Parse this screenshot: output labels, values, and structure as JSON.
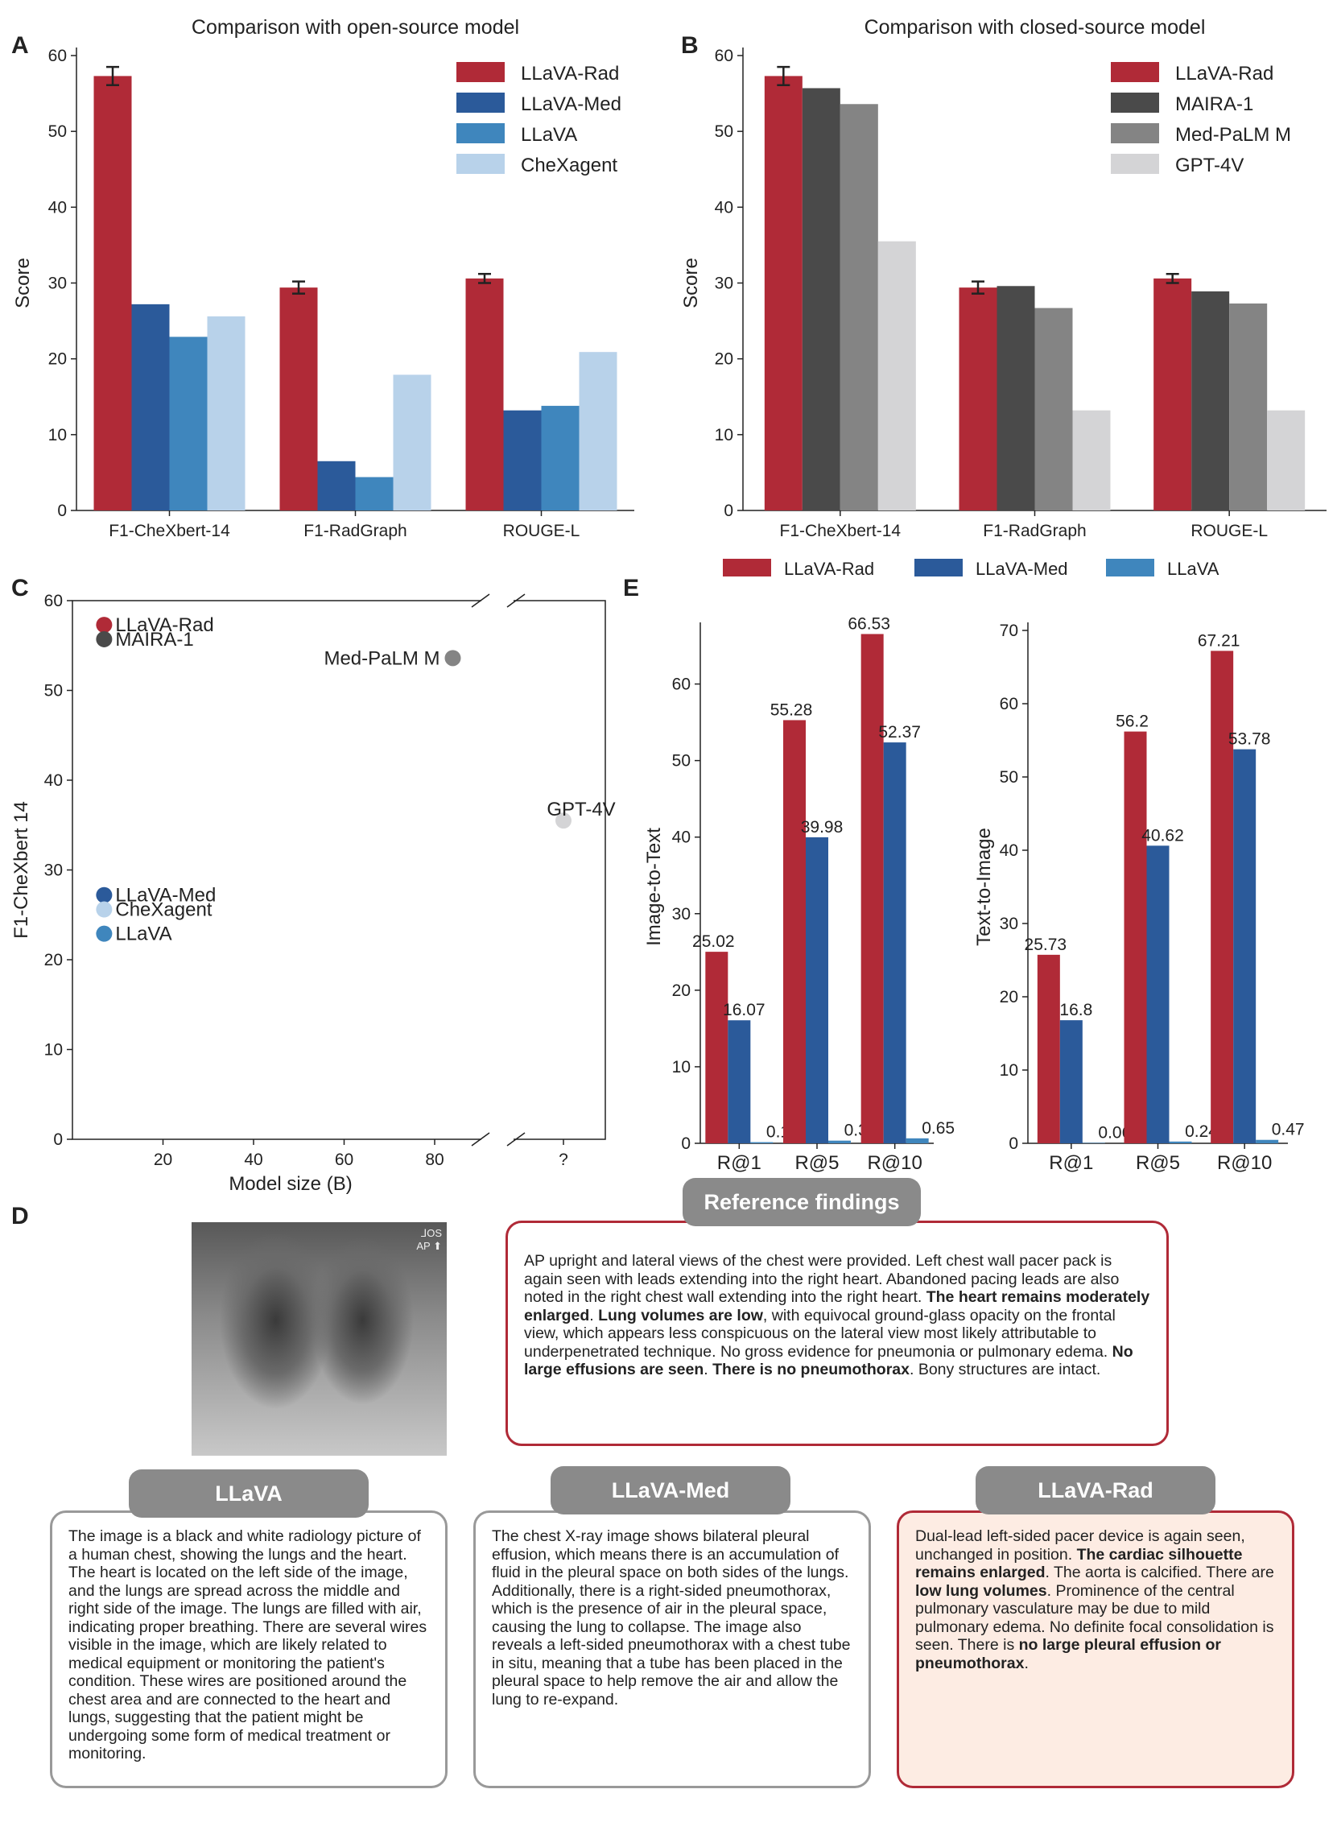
{
  "panels": {
    "A": "A",
    "B": "B",
    "C": "C",
    "D": "D",
    "E": "E"
  },
  "colors": {
    "llava_rad": "#b02a37",
    "llava_med": "#2b5a9a",
    "llava": "#3f86bd",
    "chexagent": "#b8d2ea",
    "maira": "#4a4a4a",
    "medpalm": "#848484",
    "gpt4v": "#d4d4d6"
  },
  "chart_data": [
    {
      "id": "A",
      "type": "bar",
      "title": "Comparison with open-source model",
      "ylabel": "Score",
      "ylim": [
        0,
        60
      ],
      "yticks": [
        "0",
        "10",
        "20",
        "30",
        "40",
        "50",
        "60"
      ],
      "categories": [
        "F1-CheXbert-14",
        "F1-RadGraph",
        "ROUGE-L"
      ],
      "series": [
        {
          "name": "LLaVA-Rad",
          "values": [
            57.3,
            29.4,
            30.6
          ],
          "errors": [
            1.2,
            0.8,
            0.6
          ]
        },
        {
          "name": "LLaVA-Med",
          "values": [
            27.2,
            6.5,
            13.2
          ]
        },
        {
          "name": "LLaVA",
          "values": [
            22.9,
            4.4,
            13.8
          ]
        },
        {
          "name": "CheXagent",
          "values": [
            25.6,
            17.9,
            20.9
          ]
        }
      ],
      "legend": "top-right"
    },
    {
      "id": "B",
      "type": "bar",
      "title": "Comparison with closed-source model",
      "ylabel": "Score",
      "ylim": [
        0,
        60
      ],
      "yticks": [
        "0",
        "10",
        "20",
        "30",
        "40",
        "50",
        "60"
      ],
      "categories": [
        "F1-CheXbert-14",
        "F1-RadGraph",
        "ROUGE-L"
      ],
      "series": [
        {
          "name": "LLaVA-Rad",
          "values": [
            57.3,
            29.4,
            30.6
          ],
          "errors": [
            1.2,
            0.8,
            0.6
          ]
        },
        {
          "name": "MAIRA-1",
          "values": [
            55.7,
            29.6,
            28.9
          ]
        },
        {
          "name": "Med-PaLM M",
          "values": [
            53.6,
            26.7,
            27.3
          ]
        },
        {
          "name": "GPT-4V",
          "values": [
            35.5,
            13.2,
            13.2
          ]
        }
      ],
      "legend": "top-right"
    },
    {
      "id": "C",
      "type": "scatter",
      "xlabel": "Model size (B)",
      "ylabel": "F1-CheXbert 14",
      "ylim": [
        0,
        60
      ],
      "yticks": [
        "0",
        "10",
        "20",
        "30",
        "40",
        "50",
        "60"
      ],
      "xticks": [
        "20",
        "40",
        "60",
        "80",
        "?"
      ],
      "points": [
        {
          "label": "LLaVA-Rad",
          "x": 7,
          "y": 57.3
        },
        {
          "label": "MAIRA-1",
          "x": 7,
          "y": 55.7
        },
        {
          "label": "Med-PaLM M",
          "x": 84,
          "y": 53.6
        },
        {
          "label": "GPT-4V",
          "x": "?",
          "y": 35.5
        },
        {
          "label": "LLaVA-Med",
          "x": 7,
          "y": 27.2
        },
        {
          "label": "CheXagent",
          "x": 7,
          "y": 25.6
        },
        {
          "label": "LLaVA",
          "x": 7,
          "y": 22.9
        }
      ]
    },
    {
      "id": "E1",
      "type": "bar",
      "ylabel": "Image-to-Text",
      "ylim": [
        0,
        67
      ],
      "yticks": [
        "0",
        "10",
        "20",
        "30",
        "40",
        "50",
        "60"
      ],
      "categories": [
        "R@1",
        "R@5",
        "R@10"
      ],
      "series": [
        {
          "name": "LLaVA-Rad",
          "values": [
            25.02,
            55.28,
            66.53
          ]
        },
        {
          "name": "LLaVA-Med",
          "values": [
            16.07,
            39.98,
            52.37
          ]
        },
        {
          "name": "LLaVA",
          "values": [
            0.15,
            0.35,
            0.65
          ]
        }
      ],
      "legend": "top"
    },
    {
      "id": "E2",
      "type": "bar",
      "ylabel": "Text-to-Image",
      "ylim": [
        0,
        70
      ],
      "yticks": [
        "0",
        "10",
        "20",
        "30",
        "40",
        "50",
        "60",
        "70"
      ],
      "categories": [
        "R@1",
        "R@5",
        "R@10"
      ],
      "series": [
        {
          "name": "LLaVA-Rad",
          "values": [
            25.73,
            56.2,
            67.21
          ]
        },
        {
          "name": "LLaVA-Med",
          "values": [
            16.8,
            40.62,
            53.78
          ]
        },
        {
          "name": "LLaVA",
          "values": [
            0.06,
            0.24,
            0.47
          ]
        }
      ]
    }
  ],
  "legend_e": [
    "LLaVA-Rad",
    "LLaVA-Med",
    "LLaVA"
  ],
  "panel_d": {
    "xray_marker": "⅃OS\nAP ⬆",
    "reference_title": "Reference findings",
    "reference_text": [
      {
        "t": "AP upright and lateral views of the chest were provided.  Left chest wall pacer pack is again seen with leads extending into the right heart. Abandoned pacing leads are also noted in the right chest wall extending into the right heart.  ",
        "b": false
      },
      {
        "t": "The heart remains moderately enlarged",
        "b": true
      },
      {
        "t": ".  ",
        "b": false
      },
      {
        "t": "Lung volumes are low",
        "b": true
      },
      {
        "t": ", with equivocal ground-glass opacity on the frontal view, which appears less conspicuous on the lateral view most likely attributable to underpenetrated technique.  No gross evidence for pneumonia or pulmonary edema.  ",
        "b": false
      },
      {
        "t": "No large effusions are seen",
        "b": true
      },
      {
        "t": ".  ",
        "b": false
      },
      {
        "t": "There is no pneumothorax",
        "b": true
      },
      {
        "t": ".  Bony structures are intact.",
        "b": false
      }
    ],
    "llava_title": "LLaVA",
    "llava_text": "The image is a black and white radiology picture of a human chest, showing the lungs and the heart. The heart is located on the left side of the image, and the lungs are spread across the middle and right side of the image. The lungs are filled with air, indicating proper breathing. There are several wires visible in the image, which are likely related to medical equipment or monitoring the patient's condition. These wires are positioned around the chest area and are connected to the heart and lungs, suggesting that the patient might be undergoing some form of medical treatment or monitoring.",
    "llavamed_title": "LLaVA-Med",
    "llavamed_text": "The chest X-ray image shows bilateral pleural effusion, which means there is an accumulation of fluid in the pleural space on both sides of the lungs. Additionally, there is a right-sided pneumothorax, which is the presence of air in the pleural space, causing the lung to collapse. The image also reveals a left-sided pneumothorax with a chest tube in situ, meaning that a tube has been placed in the pleural space to help remove the air and allow the lung to re-expand.",
    "llavarad_title": "LLaVA-Rad",
    "llavarad_text": [
      {
        "t": "Dual-lead left-sided pacer device is again seen, unchanged in position.  ",
        "b": false
      },
      {
        "t": "The cardiac silhouette remains enlarged",
        "b": true
      },
      {
        "t": ".  The aorta is calcified.  There are ",
        "b": false
      },
      {
        "t": "low lung volumes",
        "b": true
      },
      {
        "t": ".  Prominence of the central pulmonary vasculature may be due to mild pulmonary edema.  No definite focal consolidation is seen.  There is ",
        "b": false
      },
      {
        "t": "no large pleural effusion or pneumothorax",
        "b": true
      },
      {
        "t": ".",
        "b": false
      }
    ]
  }
}
